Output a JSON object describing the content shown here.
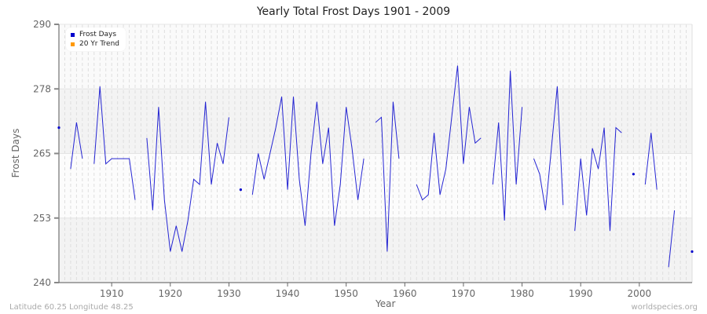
{
  "title": "Yearly Total Frost Days 1901 - 2009",
  "footer": {
    "location": "Latitude 60.25 Longitude 48.25",
    "source": "worldspecies.org"
  },
  "legend": [
    {
      "label": "Frost Days",
      "color": "#0000cc"
    },
    {
      "label": "20 Yr Trend",
      "color": "#ff9900"
    }
  ],
  "chart_data": {
    "type": "line",
    "title": "Yearly Total Frost Days 1901 - 2009",
    "xlabel": "Year",
    "ylabel": "Frost Days",
    "ylim": [
      240,
      290
    ],
    "xlim": [
      1901,
      2009
    ],
    "yticks": [
      240,
      253,
      265,
      278,
      290
    ],
    "xticks": [
      1910,
      1920,
      1930,
      1940,
      1950,
      1960,
      1970,
      1980,
      1990,
      2000
    ],
    "grid": true,
    "legend_position": "top-left",
    "series": [
      {
        "name": "Frost Days",
        "color": "#0000cc",
        "x": [
          1901,
          1902,
          1903,
          1904,
          1905,
          1906,
          1907,
          1908,
          1909,
          1910,
          1911,
          1912,
          1913,
          1914,
          1915,
          1916,
          1917,
          1918,
          1919,
          1920,
          1921,
          1922,
          1923,
          1924,
          1925,
          1926,
          1927,
          1928,
          1929,
          1930,
          1931,
          1932,
          1933,
          1934,
          1935,
          1936,
          1937,
          1938,
          1939,
          1940,
          1941,
          1942,
          1943,
          1944,
          1945,
          1946,
          1947,
          1948,
          1949,
          1950,
          1951,
          1952,
          1953,
          1954,
          1955,
          1956,
          1957,
          1958,
          1959,
          1960,
          1961,
          1962,
          1963,
          1964,
          1965,
          1966,
          1967,
          1968,
          1969,
          1970,
          1971,
          1972,
          1973,
          1974,
          1975,
          1976,
          1977,
          1978,
          1979,
          1980,
          1981,
          1982,
          1983,
          1984,
          1985,
          1986,
          1987,
          1988,
          1989,
          1990,
          1991,
          1992,
          1993,
          1994,
          1995,
          1996,
          1997,
          1998,
          1999,
          2000,
          2001,
          2002,
          2003,
          2004,
          2005,
          2006,
          2007,
          2008,
          2009
        ],
        "values": [
          270,
          null,
          262,
          271,
          264,
          null,
          263,
          278,
          263,
          264,
          264,
          264,
          264,
          256,
          null,
          268,
          254,
          274,
          256,
          246,
          251,
          246,
          252,
          260,
          259,
          275,
          259,
          267,
          263,
          272,
          null,
          258,
          null,
          257,
          265,
          260,
          265,
          270,
          276,
          258,
          276,
          260,
          251,
          265,
          275,
          263,
          270,
          251,
          259,
          274,
          266,
          256,
          264,
          null,
          271,
          272,
          246,
          275,
          264,
          null,
          null,
          259,
          256,
          257,
          269,
          257,
          262,
          272,
          282,
          263,
          274,
          267,
          268,
          null,
          259,
          271,
          252,
          281,
          259,
          274,
          null,
          264,
          261,
          254,
          266,
          278,
          255,
          null,
          250,
          264,
          253,
          266,
          262,
          270,
          250,
          270,
          269,
          null,
          261,
          null,
          259,
          269,
          258,
          null,
          243,
          254,
          null,
          null,
          246
        ]
      },
      {
        "name": "20 Yr Trend",
        "color": "#ff9900",
        "x": [],
        "values": []
      }
    ]
  }
}
